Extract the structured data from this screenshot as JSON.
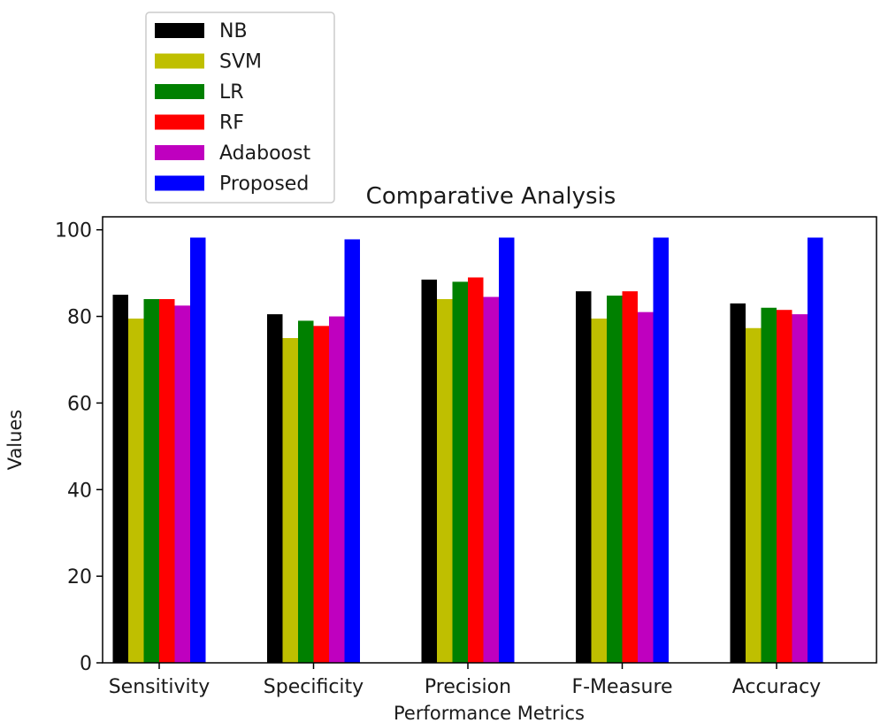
{
  "chart_data": {
    "type": "bar",
    "title": "Comparative Analysis",
    "xlabel": "Performance Metrics",
    "ylabel": "Values",
    "ylim": [
      0,
      103
    ],
    "yticks": [
      0,
      20,
      40,
      60,
      80,
      100
    ],
    "categories": [
      "Sensitivity",
      "Specificity",
      "Precision",
      "F-Measure",
      "Accuracy"
    ],
    "legend_position": "above-left",
    "grid": false,
    "series": [
      {
        "name": "NB",
        "color": "#000000",
        "values": [
          85,
          80.5,
          88.5,
          85.8,
          83
        ]
      },
      {
        "name": "SVM",
        "color": "#bfbf00",
        "values": [
          79.5,
          75,
          84,
          79.5,
          77.3
        ]
      },
      {
        "name": "LR",
        "color": "#008000",
        "values": [
          84,
          79,
          88,
          84.8,
          82
        ]
      },
      {
        "name": "RF",
        "color": "#ff0000",
        "values": [
          84,
          77.8,
          89,
          85.8,
          81.5
        ]
      },
      {
        "name": "Adaboost",
        "color": "#bf00bf",
        "values": [
          82.5,
          80,
          84.5,
          81,
          80.5
        ]
      },
      {
        "name": "Proposed",
        "color": "#0000ff",
        "values": [
          98.2,
          97.8,
          98.2,
          98.2,
          98.2
        ]
      }
    ]
  }
}
